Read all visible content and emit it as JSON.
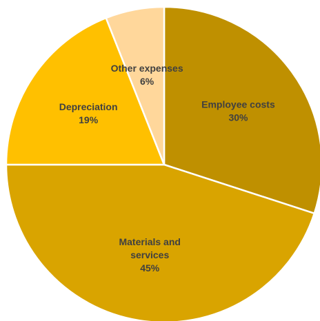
{
  "chart_data": {
    "type": "pie",
    "title": "",
    "start_angle_deg": 0,
    "direction": "clockwise",
    "slices": [
      {
        "label_lines": [
          "Employee costs"
        ],
        "value": 30,
        "display_value": "30%",
        "color": "#BF9000"
      },
      {
        "label_lines": [
          "Materials and",
          "services"
        ],
        "value": 45,
        "display_value": "45%",
        "color": "#D9A400"
      },
      {
        "label_lines": [
          "Depreciation"
        ],
        "value": 19,
        "display_value": "19%",
        "color": "#FFC000"
      },
      {
        "label_lines": [
          "Other expenses"
        ],
        "value": 6,
        "display_value": "6%",
        "color": "#FFD79B"
      }
    ]
  }
}
